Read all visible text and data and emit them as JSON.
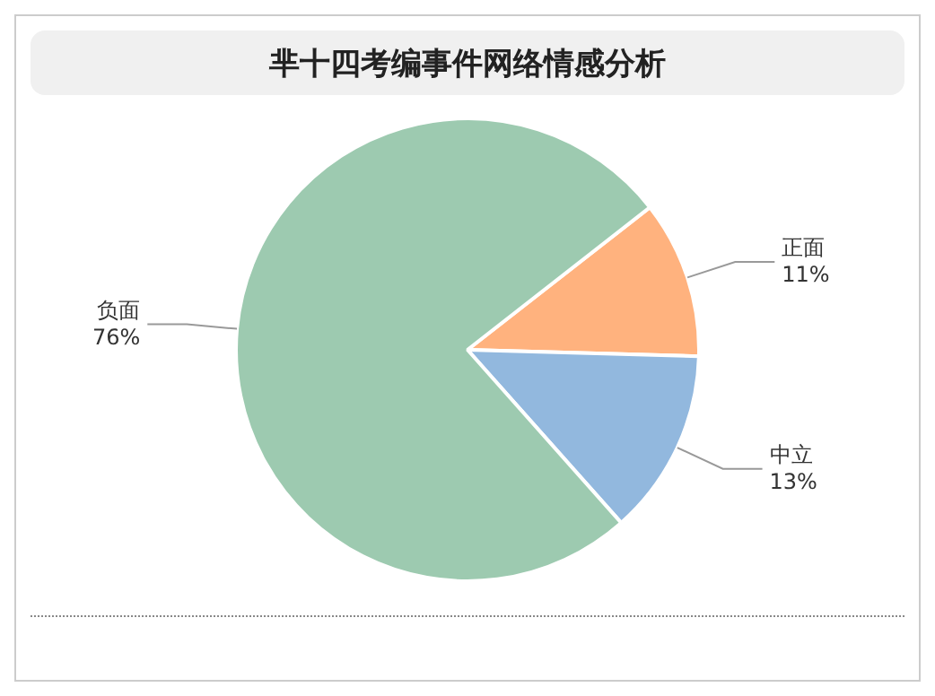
{
  "chart_data": {
    "type": "pie",
    "title": "芈十四考编事件网络情感分析",
    "categories": [
      "正面",
      "中立",
      "负面"
    ],
    "values": [
      11,
      13,
      76
    ],
    "value_labels": [
      "11%",
      "13%",
      "76%"
    ],
    "colors": [
      "#ffb27e",
      "#92b8de",
      "#9dcab0"
    ],
    "legend": false
  }
}
